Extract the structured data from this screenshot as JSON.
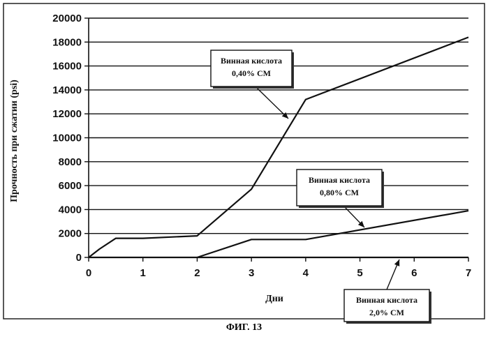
{
  "caption": "ФИГ. 13",
  "chart_data": {
    "type": "line",
    "xlabel": "Дни",
    "ylabel": "Прочность при сжатии (psi)",
    "xlim": [
      0,
      7
    ],
    "ylim": [
      0,
      20000
    ],
    "xticks": [
      0,
      1,
      2,
      3,
      4,
      5,
      6,
      7
    ],
    "yticks": [
      0,
      2000,
      4000,
      6000,
      8000,
      10000,
      12000,
      14000,
      16000,
      18000,
      20000
    ],
    "grid": "horizontal",
    "series": [
      {
        "name": "Винная кислота 0,40% СМ",
        "x": [
          0,
          0.2,
          0.5,
          1,
          2,
          3,
          4,
          7
        ],
        "y": [
          0,
          700,
          1600,
          1600,
          1800,
          5700,
          13200,
          18400
        ]
      },
      {
        "name": "Винная кислота 0,80% СМ",
        "x": [
          2,
          3,
          4,
          7
        ],
        "y": [
          0,
          1500,
          1500,
          3900
        ]
      },
      {
        "name": "Винная кислота 2,0% СМ",
        "x": [
          0,
          7
        ],
        "y": [
          0,
          0
        ]
      }
    ],
    "annotations": [
      {
        "lines": [
          "Винная кислота",
          "0,40% СМ"
        ],
        "target": [
          3.7,
          11700
        ]
      },
      {
        "lines": [
          "Винная кислота",
          "0,80% СМ"
        ],
        "target": [
          5.2,
          2700
        ]
      },
      {
        "lines": [
          "Винная кислота",
          "2,0% СМ"
        ],
        "target": [
          5.7,
          -50
        ]
      }
    ]
  }
}
